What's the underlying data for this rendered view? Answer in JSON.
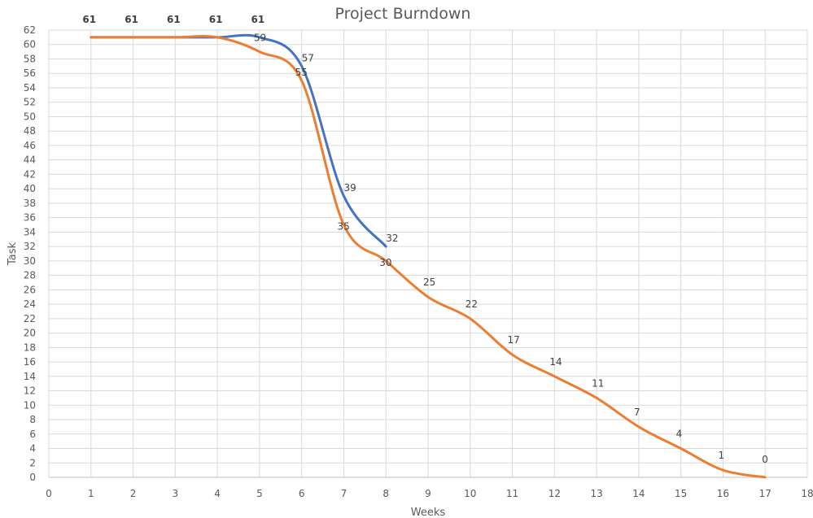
{
  "chart_data": {
    "type": "line",
    "title": "Project Burndown",
    "xlabel": "Weeks",
    "ylabel": "Task",
    "xlim": [
      0,
      18
    ],
    "ylim": [
      0,
      62
    ],
    "x_ticks": [
      "0",
      "1",
      "2",
      "3",
      "4",
      "5",
      "6",
      "7",
      "8",
      "9",
      "10",
      "11",
      "12",
      "13",
      "14",
      "15",
      "16",
      "17",
      "18"
    ],
    "y_ticks": [
      "0",
      "2",
      "4",
      "6",
      "8",
      "10",
      "12",
      "14",
      "16",
      "18",
      "20",
      "22",
      "24",
      "26",
      "28",
      "30",
      "32",
      "34",
      "36",
      "38",
      "40",
      "42",
      "44",
      "46",
      "48",
      "50",
      "52",
      "54",
      "56",
      "58",
      "60",
      "62"
    ],
    "grid": true,
    "smooth": true,
    "series": [
      {
        "color": "#4472c4",
        "x": [
          1,
          2,
          3,
          4,
          5,
          6,
          7,
          8
        ],
        "values": [
          61,
          61,
          61,
          61,
          61,
          57,
          39,
          32
        ],
        "labels": [
          "61",
          "61",
          "61",
          "61",
          "61",
          "57",
          "39",
          "32"
        ]
      },
      {
        "color": "#ed7d31",
        "x": [
          1,
          2,
          3,
          4,
          5,
          6,
          7,
          8,
          9,
          10,
          11,
          12,
          13,
          14,
          15,
          16,
          17
        ],
        "values": [
          61,
          61,
          61,
          61,
          59,
          55,
          35,
          30,
          25,
          22,
          17,
          14,
          11,
          7,
          4,
          1,
          0
        ],
        "labels": [
          "61",
          "61",
          "61",
          "61",
          "59",
          "55",
          "35",
          "30",
          "25",
          "22",
          "17",
          "14",
          "11",
          "7",
          "4",
          "1",
          "0"
        ]
      }
    ]
  }
}
